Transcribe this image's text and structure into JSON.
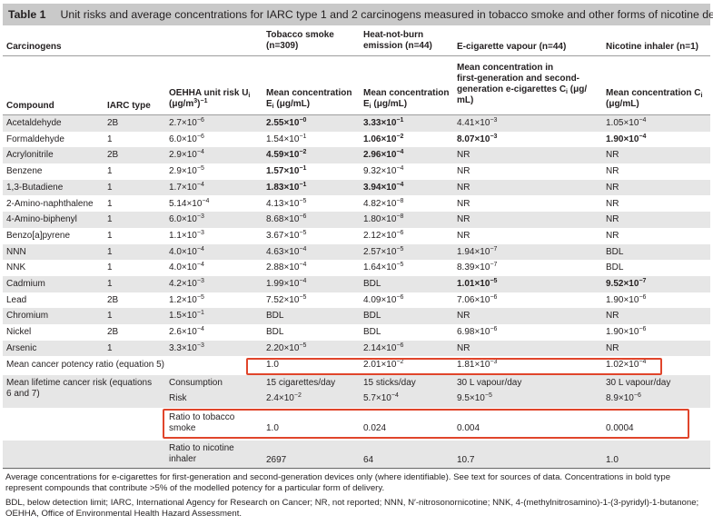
{
  "table_title": {
    "label": "Table 1",
    "text": "Unit risks and average concentrations for IARC type 1 and 2 carcinogens measured in tobacco smoke and other forms of nicotine delivery"
  },
  "group_headers": {
    "carcinogens": "Carcinogens",
    "tobacco": [
      "Tobacco smoke",
      "(n=309)"
    ],
    "htp": [
      "Heat-not-burn",
      "emission (n=44)"
    ],
    "ecig": "E-cigarette vapour (n=44)",
    "inhaler": "Nicotine inhaler (n=1)"
  },
  "col_headers": {
    "compound": "Compound",
    "iarc": "IARC type",
    "oehha": [
      "OEHHA unit risk U",
      "(μg/m",
      "3",
      ")",
      "−1"
    ],
    "tobacco": [
      "Mean concentration",
      "E",
      "i",
      " (μg/mL)"
    ],
    "htp": [
      "Mean concentration",
      "E",
      "i",
      " (μg/mL)"
    ],
    "ecig": [
      "Mean concentration in",
      "first-generation and second-",
      "generation e-cigarettes C",
      "i",
      " (μg/",
      "mL)"
    ],
    "inhaler": [
      "Mean concentration C",
      "i",
      "(μg/mL)"
    ]
  },
  "rows": [
    {
      "compound": "Acetaldehyde",
      "iarc": "2B",
      "oehha": [
        "2.7×10",
        "−6"
      ],
      "tobacco": [
        "2.55×10",
        "−0",
        true
      ],
      "htp": [
        "3.33×10",
        "−1",
        true
      ],
      "ecig": [
        "4.41×10",
        "−3",
        false
      ],
      "inhaler": [
        "1.05×10",
        "−4",
        false
      ]
    },
    {
      "compound": "Formaldehyde",
      "iarc": "1",
      "oehha": [
        "6.0×10",
        "−6"
      ],
      "tobacco": [
        "1.54×10",
        "−1",
        false
      ],
      "htp": [
        "1.06×10",
        "−2",
        true
      ],
      "ecig": [
        "8.07×10",
        "−3",
        true
      ],
      "inhaler": [
        "1.90×10",
        "−4",
        true
      ]
    },
    {
      "compound": "Acrylonitrile",
      "iarc": "2B",
      "oehha": [
        "2.9×10",
        "−4"
      ],
      "tobacco": [
        "4.59×10",
        "−2",
        true
      ],
      "htp": [
        "2.96×10",
        "−4",
        true
      ],
      "ecig": [
        "NR",
        "",
        false
      ],
      "inhaler": [
        "NR",
        "",
        false
      ]
    },
    {
      "compound": "Benzene",
      "iarc": "1",
      "oehha": [
        "2.9×10",
        "−5"
      ],
      "tobacco": [
        "1.57×10",
        "−1",
        true
      ],
      "htp": [
        "9.32×10",
        "−4",
        false
      ],
      "ecig": [
        "NR",
        "",
        false
      ],
      "inhaler": [
        "NR",
        "",
        false
      ]
    },
    {
      "compound": "1,3-Butadiene",
      "iarc": "1",
      "oehha": [
        "1.7×10",
        "−4"
      ],
      "tobacco": [
        "1.83×10",
        "−1",
        true
      ],
      "htp": [
        "3.94×10",
        "−4",
        true
      ],
      "ecig": [
        "NR",
        "",
        false
      ],
      "inhaler": [
        "NR",
        "",
        false
      ]
    },
    {
      "compound": "2-Amino-naphthalene",
      "iarc": "1",
      "oehha": [
        "5.14×10",
        "−4"
      ],
      "tobacco": [
        "4.13×10",
        "−5",
        false
      ],
      "htp": [
        "4.82×10",
        "−8",
        false
      ],
      "ecig": [
        "NR",
        "",
        false
      ],
      "inhaler": [
        "NR",
        "",
        false
      ]
    },
    {
      "compound": "4-Amino-biphenyl",
      "iarc": "1",
      "oehha": [
        "6.0×10",
        "−3"
      ],
      "tobacco": [
        "8.68×10",
        "−6",
        false
      ],
      "htp": [
        "1.80×10",
        "−8",
        false
      ],
      "ecig": [
        "NR",
        "",
        false
      ],
      "inhaler": [
        "NR",
        "",
        false
      ]
    },
    {
      "compound": "Benzo[a]pyrene",
      "iarc": "1",
      "oehha": [
        "1.1×10",
        "−3"
      ],
      "tobacco": [
        "3.67×10",
        "−5",
        false
      ],
      "htp": [
        "2.12×10",
        "−6",
        false
      ],
      "ecig": [
        "NR",
        "",
        false
      ],
      "inhaler": [
        "NR",
        "",
        false
      ]
    },
    {
      "compound": "NNN",
      "iarc": "1",
      "oehha": [
        "4.0×10",
        "−4"
      ],
      "tobacco": [
        "4.63×10",
        "−4",
        false
      ],
      "htp": [
        "2.57×10",
        "−5",
        false
      ],
      "ecig": [
        "1.94×10",
        "−7",
        false
      ],
      "inhaler": [
        "BDL",
        "",
        false
      ]
    },
    {
      "compound": "NNK",
      "iarc": "1",
      "oehha": [
        "4.0×10",
        "−4"
      ],
      "tobacco": [
        "2.88×10",
        "−4",
        false
      ],
      "htp": [
        "1.64×10",
        "−5",
        false
      ],
      "ecig": [
        "8.39×10",
        "−7",
        false
      ],
      "inhaler": [
        "BDL",
        "",
        false
      ]
    },
    {
      "compound": "Cadmium",
      "iarc": "1",
      "oehha": [
        "4.2×10",
        "−3"
      ],
      "tobacco": [
        "1.99×10",
        "−4",
        false
      ],
      "htp": [
        "BDL",
        "",
        false
      ],
      "ecig": [
        "1.01×10",
        "−5",
        true
      ],
      "inhaler": [
        "9.52×10",
        "−7",
        true
      ]
    },
    {
      "compound": "Lead",
      "iarc": "2B",
      "oehha": [
        "1.2×10",
        "−5"
      ],
      "tobacco": [
        "7.52×10",
        "−5",
        false
      ],
      "htp": [
        "4.09×10",
        "−6",
        false
      ],
      "ecig": [
        "7.06×10",
        "−6",
        false
      ],
      "inhaler": [
        "1.90×10",
        "−6",
        false
      ]
    },
    {
      "compound": "Chromium",
      "iarc": "1",
      "oehha": [
        "1.5×10",
        "−1"
      ],
      "tobacco": [
        "BDL",
        "",
        false
      ],
      "htp": [
        "BDL",
        "",
        false
      ],
      "ecig": [
        "NR",
        "",
        false
      ],
      "inhaler": [
        "NR",
        "",
        false
      ]
    },
    {
      "compound": "Nickel",
      "iarc": "2B",
      "oehha": [
        "2.6×10",
        "−4"
      ],
      "tobacco": [
        "BDL",
        "",
        false
      ],
      "htp": [
        "BDL",
        "",
        false
      ],
      "ecig": [
        "6.98×10",
        "−6",
        false
      ],
      "inhaler": [
        "1.90×10",
        "−6",
        false
      ]
    },
    {
      "compound": "Arsenic",
      "iarc": "1",
      "oehha": [
        "3.3×10",
        "−3"
      ],
      "tobacco": [
        "2.20×10",
        "−5",
        false
      ],
      "htp": [
        "2.14×10",
        "−6",
        false
      ],
      "ecig": [
        "NR",
        "",
        false
      ],
      "inhaler": [
        "NR",
        "",
        false
      ]
    }
  ],
  "potency": {
    "label": "Mean cancer potency ratio (equation 5)",
    "tobacco": [
      "1.0",
      ""
    ],
    "htp": [
      "2.01×10",
      "−2"
    ],
    "ecig": [
      "1.81×10",
      "−3"
    ],
    "inhaler": [
      "1.02×10",
      "−4"
    ]
  },
  "lifetime": {
    "label": [
      "Mean lifetime cancer risk (equations",
      "6 and 7)"
    ],
    "consumption": {
      "label": "Consumption",
      "tobacco": "15 cigarettes/day",
      "htp": "15 sticks/day",
      "ecig": "30 L vapour/day",
      "inhaler": "30 L vapour/day"
    },
    "risk": {
      "label": "Risk",
      "tobacco": [
        "2.4×10",
        "−2"
      ],
      "htp": [
        "5.7×10",
        "−4"
      ],
      "ecig": [
        "9.5×10",
        "−5"
      ],
      "inhaler": [
        "8.9×10",
        "−6"
      ]
    }
  },
  "ratio_tobacco": {
    "label": [
      "Ratio to tobacco",
      "smoke"
    ],
    "tobacco": "1.0",
    "htp": "0.024",
    "ecig": "0.004",
    "inhaler": "0.0004"
  },
  "ratio_nicotine": {
    "label": [
      "Ratio to nicotine",
      "inhaler"
    ],
    "tobacco": "2697",
    "htp": "64",
    "ecig": "10.7",
    "inhaler": "1.0"
  },
  "footnotes": [
    "Average concentrations for e-cigarettes for first-generation and second-generation devices only (where identifiable). See text for sources of data. Concentrations in bold type represent compounds that contribute >5% of the modelled potency for a particular form of delivery.",
    "BDL, below detection limit; IARC, International Agency for Research on Cancer; NR, not reported; NNN, N′-nitrosonornicotine; NNK, 4-(methylnitrosamino)-1-(3-pyridyl)-1-butanone; OEHHA, Office of Environmental Health Hazard Assessment."
  ],
  "colors": {
    "title_bg": "#c9c9c9",
    "row_shade": "#e6e6e6",
    "highlight_box": "#e0452b"
  }
}
